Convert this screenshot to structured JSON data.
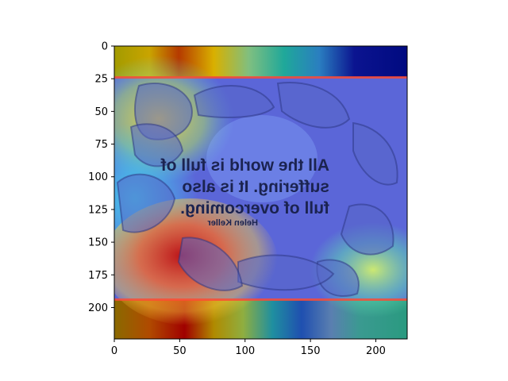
{
  "chart_data": {
    "type": "heatmap",
    "description_visible": "image with attention heatmap overlay",
    "x_ticks": [
      0,
      50,
      100,
      150,
      200
    ],
    "y_ticks": [
      0,
      25,
      50,
      75,
      100,
      125,
      150,
      175,
      200
    ],
    "xlim": [
      0,
      224
    ],
    "ylim": [
      224,
      0
    ],
    "image_text": {
      "quote_lines": [
        "All the world is full of",
        "suffering. It is also",
        "full of overcoming."
      ],
      "author": "Helen Keller"
    },
    "colormap": "jet",
    "colors": {
      "hot": "#b00000",
      "warm": "#ffcc00",
      "mid": "#20c0a0",
      "cool": "#3050ff",
      "cold": "#000080",
      "hands": "#6070c0"
    }
  }
}
